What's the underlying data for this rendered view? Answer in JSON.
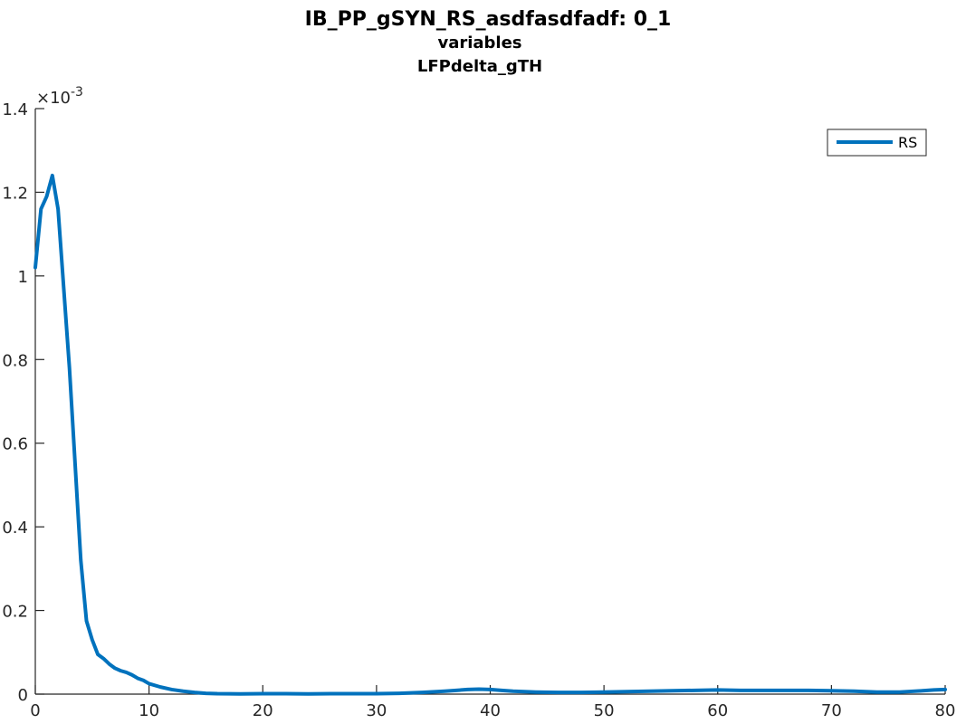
{
  "chart_data": {
    "type": "line",
    "title_lines": [
      "IB_PP_gSYN_RS_asdfasdfadf: 0_1",
      "variables",
      "LFPdelta_gTH"
    ],
    "xlabel": "",
    "ylabel": "",
    "xlim": [
      0,
      80
    ],
    "ylim": [
      0,
      0.0014
    ],
    "y_exponent_label": "×10",
    "y_exponent_power": "-3",
    "x_ticks": [
      0,
      10,
      20,
      30,
      40,
      50,
      60,
      70,
      80
    ],
    "x_tick_labels": [
      "0",
      "10",
      "20",
      "30",
      "40",
      "50",
      "60",
      "70",
      "80"
    ],
    "y_ticks": [
      0,
      0.0002,
      0.0004,
      0.0006,
      0.0008,
      0.001,
      0.0012,
      0.0014
    ],
    "y_tick_labels": [
      "0",
      "0.2",
      "0.4",
      "0.6",
      "0.8",
      "1",
      "1.2",
      "1.4"
    ],
    "grid": false,
    "legend": {
      "position": "top-right",
      "entries": [
        "RS"
      ]
    },
    "colors": {
      "series": "#0072BD",
      "axis": "#262626"
    },
    "series": [
      {
        "name": "RS",
        "x": [
          0,
          0.5,
          1.0,
          1.5,
          2.0,
          2.5,
          3.0,
          3.5,
          4.0,
          4.5,
          5.0,
          5.5,
          6.0,
          6.5,
          7.0,
          7.5,
          8.0,
          8.5,
          9.0,
          9.5,
          10.0,
          11.0,
          12.0,
          13.0,
          14.0,
          15.0,
          16.0,
          18.0,
          20.0,
          22.0,
          24.0,
          26.0,
          28.0,
          30.0,
          32.0,
          34.0,
          36.0,
          37.0,
          38.0,
          39.0,
          40.0,
          41.0,
          42.0,
          44.0,
          46.0,
          48.0,
          50.0,
          52.0,
          54.0,
          56.0,
          58.0,
          60.0,
          62.0,
          64.0,
          66.0,
          68.0,
          70.0,
          72.0,
          74.0,
          76.0,
          78.0,
          79.0,
          80.0
        ],
        "y": [
          0.00102,
          0.00116,
          0.00119,
          0.00124,
          0.00116,
          0.00097,
          0.00078,
          0.00055,
          0.00032,
          0.000175,
          0.00013,
          9.5e-05,
          8.5e-05,
          7.2e-05,
          6.2e-05,
          5.6e-05,
          5.2e-05,
          4.6e-05,
          3.8e-05,
          3.3e-05,
          2.5e-05,
          1.7e-05,
          1.1e-05,
          7e-06,
          4e-06,
          2e-06,
          1e-06,
          5e-07,
          1e-06,
          1e-06,
          5e-07,
          1e-06,
          1e-06,
          1e-06,
          2e-06,
          4e-06,
          7e-06,
          9e-06,
          1.1e-05,
          1.2e-05,
          1.1e-05,
          9e-06,
          7e-06,
          5e-06,
          4e-06,
          4e-06,
          5e-06,
          6e-06,
          7e-06,
          8e-06,
          9e-06,
          1e-05,
          9e-06,
          9e-06,
          9e-06,
          9e-06,
          8e-06,
          7e-06,
          5e-06,
          5e-06,
          8e-06,
          1e-05,
          1.1e-05
        ]
      }
    ]
  }
}
